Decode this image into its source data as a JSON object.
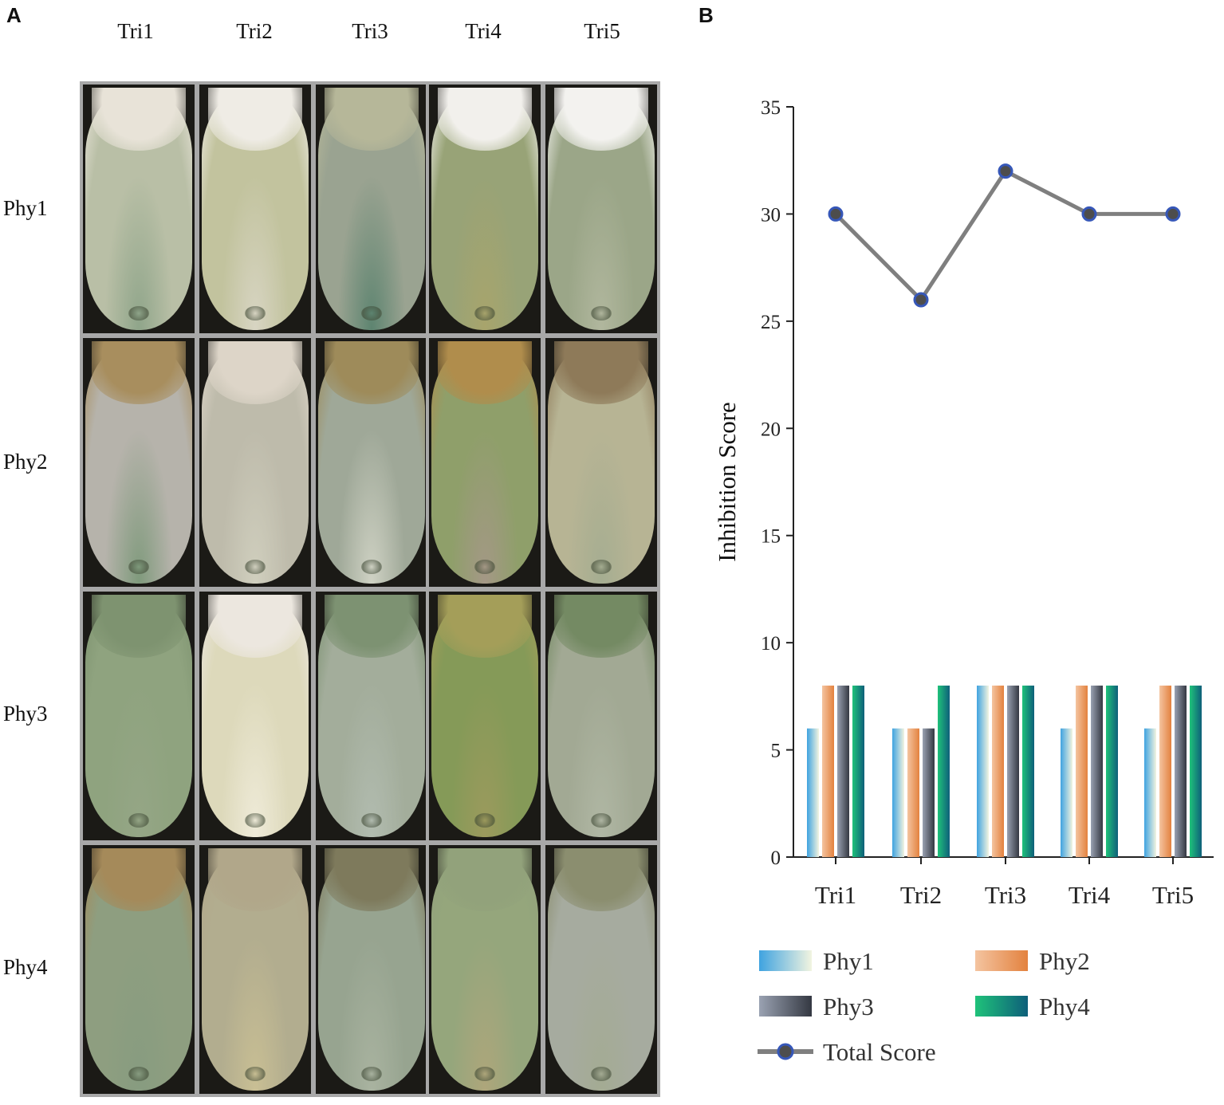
{
  "panel_a": {
    "label": "A",
    "columns": [
      "Tri1",
      "Tri2",
      "Tri3",
      "Tri4",
      "Tri5"
    ],
    "rows": [
      "Phy1",
      "Phy2",
      "Phy3",
      "Phy4"
    ],
    "plates": [
      [
        {
          "top": "#e8e3d8",
          "base": "#b9bfa6",
          "bottom": "#8fa58a"
        },
        {
          "top": "#efece5",
          "base": "#c2c39e",
          "bottom": "#d8d5c3"
        },
        {
          "top": "#b6b799",
          "base": "#9aa391",
          "bottom": "#5d8470"
        },
        {
          "top": "#f2f0ec",
          "base": "#98a377",
          "bottom": "#a8a46c"
        },
        {
          "top": "#f3f2ef",
          "base": "#9ba688",
          "bottom": "#b1b79e"
        }
      ],
      [
        {
          "top": "#a88e5e",
          "base": "#b6b3ab",
          "bottom": "#7f9a7c"
        },
        {
          "top": "#ddd5c8",
          "base": "#bebbab",
          "bottom": "#d0cfbe"
        },
        {
          "top": "#9e8b5a",
          "base": "#9fa898",
          "bottom": "#cfd2c4"
        },
        {
          "top": "#b08d4c",
          "base": "#8f9f6a",
          "bottom": "#a49886"
        },
        {
          "top": "#8e7a59",
          "base": "#b7b494",
          "bottom": "#a5ad91"
        }
      ],
      [
        {
          "top": "#7e9370",
          "base": "#8fa37f",
          "bottom": "#95a686"
        },
        {
          "top": "#ece7df",
          "base": "#ddd9bb",
          "bottom": "#efebd9"
        },
        {
          "top": "#7d9272",
          "base": "#a3ad9b",
          "bottom": "#b2bcb0"
        },
        {
          "top": "#a49e59",
          "base": "#859a58",
          "bottom": "#9c9a5d"
        },
        {
          "top": "#748a63",
          "base": "#a2a994",
          "bottom": "#b0b7a4"
        }
      ],
      [
        {
          "top": "#a58a5a",
          "base": "#8e9e80",
          "bottom": "#879c80"
        },
        {
          "top": "#b1a78a",
          "base": "#b2ad8f",
          "bottom": "#c9bf94"
        },
        {
          "top": "#7e7a5c",
          "base": "#97a490",
          "bottom": "#a9b3a0"
        },
        {
          "top": "#92a27b",
          "base": "#95a67c",
          "bottom": "#aea67b"
        },
        {
          "top": "#8b8e6f",
          "base": "#a6ab9f",
          "bottom": "#a4ab93"
        }
      ]
    ]
  },
  "panel_b": {
    "label": "B"
  },
  "chart_data": {
    "type": "bar",
    "title": "",
    "xlabel": "",
    "ylabel": "Inhibition Score",
    "ylim": [
      0,
      35
    ],
    "yticks": [
      "0",
      "5",
      "10",
      "15",
      "20",
      "25",
      "30",
      "35"
    ],
    "categories": [
      "Tri1",
      "Tri2",
      "Tri3",
      "Tri4",
      "Tri5"
    ],
    "series": [
      {
        "name": "Phy1",
        "type": "bar",
        "values": [
          6,
          6,
          8,
          6,
          6
        ],
        "gradient": [
          "#3fa3e0",
          "#f2f4e0"
        ]
      },
      {
        "name": "Phy2",
        "type": "bar",
        "values": [
          8,
          6,
          8,
          8,
          8
        ],
        "gradient": [
          "#f4c4a0",
          "#e3823f"
        ]
      },
      {
        "name": "Phy3",
        "type": "bar",
        "values": [
          8,
          6,
          8,
          8,
          8
        ],
        "gradient": [
          "#9aa2b2",
          "#343842"
        ]
      },
      {
        "name": "Phy4",
        "type": "bar",
        "values": [
          8,
          8,
          8,
          8,
          8
        ],
        "gradient": [
          "#1fc27a",
          "#0e5f7a"
        ]
      },
      {
        "name": "Total Score",
        "type": "line",
        "values": [
          30,
          26,
          32,
          30,
          30
        ],
        "color": "#7f7f7f",
        "marker_color": "#3657b8"
      }
    ],
    "legend": [
      "Phy1",
      "Phy2",
      "Phy3",
      "Phy4",
      "Total Score"
    ],
    "legend_position": "bottom"
  }
}
